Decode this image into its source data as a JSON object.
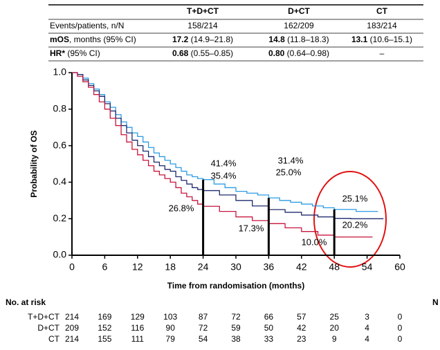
{
  "summary_table": {
    "rows": [
      {
        "label": "Events/patients, n/N",
        "cells": [
          "158/214",
          "162/209",
          "183/214"
        ]
      },
      {
        "label": {
          "bold": "mOS",
          "text": ", months (95% CI)"
        },
        "cells": [
          {
            "bold": "17.2",
            "text": " (14.9–21.8)"
          },
          {
            "bold": "14.8",
            "text": " (11.8–18.3)"
          },
          {
            "bold": "13.1",
            "text": " (10.6–15.1)"
          }
        ]
      },
      {
        "label": {
          "bold": "HR*",
          "text": " (95% CI)"
        },
        "cells": [
          {
            "bold": "0.68",
            "text": " (0.55–0.85)"
          },
          {
            "bold": "0.80",
            "text": " (0.64–0.98)"
          },
          "–"
        ]
      }
    ]
  },
  "chart_data": {
    "type": "step",
    "y_label": "Probability of OS",
    "x_label": "Time from randomisation (months)",
    "xlim": [
      0,
      60
    ],
    "xticks": [
      0,
      6,
      12,
      18,
      24,
      30,
      36,
      42,
      48,
      54,
      60
    ],
    "ylim": [
      0,
      1
    ],
    "yticks": [
      {
        "value": 0,
        "label": "0.0"
      },
      0.2,
      0.4,
      0.6,
      0.8,
      {
        "value": 1,
        "label": "1.0"
      }
    ],
    "series": [
      {
        "name": "T+D+CT",
        "color": "#2b9be3",
        "x": [
          0,
          1,
          2,
          3,
          4,
          5,
          6,
          7,
          8,
          9,
          10,
          11,
          12,
          13,
          14,
          15,
          16,
          17,
          18,
          19,
          20,
          21,
          22,
          23,
          24,
          26,
          28,
          30,
          32,
          34,
          36,
          38,
          40,
          42,
          44,
          46,
          48,
          50,
          52,
          54,
          56
        ],
        "values": [
          1,
          0.99,
          0.97,
          0.94,
          0.91,
          0.88,
          0.84,
          0.81,
          0.77,
          0.73,
          0.7,
          0.67,
          0.65,
          0.62,
          0.59,
          0.56,
          0.54,
          0.52,
          0.5,
          0.48,
          0.46,
          0.44,
          0.43,
          0.42,
          0.414,
          0.39,
          0.37,
          0.35,
          0.34,
          0.33,
          0.314,
          0.3,
          0.29,
          0.28,
          0.27,
          0.26,
          0.251,
          0.251,
          0.24,
          0.24,
          0.24
        ]
      },
      {
        "name": "D+CT",
        "color": "#1e2a6e",
        "x": [
          0,
          1,
          2,
          3,
          4,
          5,
          6,
          7,
          8,
          9,
          10,
          11,
          12,
          13,
          14,
          15,
          16,
          17,
          18,
          19,
          20,
          21,
          22,
          23,
          24,
          27,
          30,
          33,
          36,
          39,
          42,
          45,
          48,
          51,
          54,
          57
        ],
        "values": [
          1,
          0.99,
          0.96,
          0.93,
          0.9,
          0.87,
          0.83,
          0.79,
          0.75,
          0.71,
          0.67,
          0.63,
          0.6,
          0.57,
          0.54,
          0.51,
          0.49,
          0.47,
          0.46,
          0.43,
          0.41,
          0.39,
          0.37,
          0.36,
          0.354,
          0.33,
          0.3,
          0.27,
          0.25,
          0.235,
          0.22,
          0.21,
          0.202,
          0.2,
          0.2,
          0.2
        ]
      },
      {
        "name": "CT",
        "color": "#c8143c",
        "x": [
          0,
          1,
          2,
          3,
          4,
          5,
          6,
          7,
          8,
          9,
          10,
          11,
          12,
          13,
          14,
          15,
          16,
          17,
          18,
          19,
          20,
          21,
          22,
          23,
          24,
          27,
          30,
          33,
          36,
          39,
          42,
          45,
          48,
          51,
          55
        ],
        "values": [
          1,
          0.98,
          0.95,
          0.92,
          0.88,
          0.84,
          0.8,
          0.75,
          0.71,
          0.66,
          0.62,
          0.58,
          0.55,
          0.52,
          0.49,
          0.46,
          0.44,
          0.42,
          0.4,
          0.37,
          0.34,
          0.32,
          0.3,
          0.28,
          0.268,
          0.24,
          0.21,
          0.19,
          0.173,
          0.15,
          0.13,
          0.11,
          0.1,
          0.1,
          0.1
        ]
      }
    ],
    "landmarks": [
      {
        "x": 24,
        "values": [
          0.414,
          0.354,
          0.268
        ],
        "value_labels": [
          "41.4%",
          "35.4%",
          "26.8%"
        ]
      },
      {
        "x": 36,
        "values": [
          0.314,
          0.25,
          0.173
        ],
        "value_labels": [
          "31.4%",
          "25.0%",
          "17.3%"
        ]
      },
      {
        "x": 48,
        "values": [
          0.251,
          0.202,
          0.1
        ],
        "value_labels": [
          "25.1%",
          "20.2%",
          "10.0%"
        ]
      }
    ],
    "risk_table": {
      "title": "No. at risk",
      "rows": [
        [
          214,
          169,
          129,
          103,
          87,
          72,
          66,
          57,
          25,
          3,
          0
        ],
        [
          209,
          152,
          116,
          90,
          72,
          59,
          50,
          42,
          20,
          4,
          0
        ],
        [
          214,
          155,
          111,
          79,
          54,
          38,
          33,
          23,
          9,
          4,
          0
        ]
      ],
      "edge_fragment": "N"
    }
  }
}
